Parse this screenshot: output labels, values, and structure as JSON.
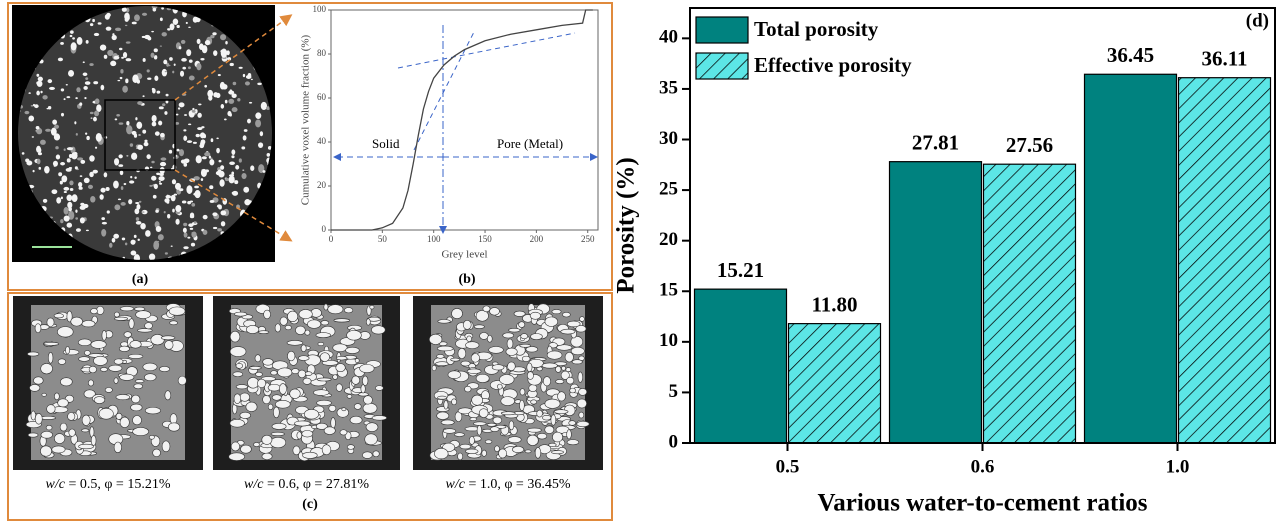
{
  "panel_labels": [
    "(a)",
    "(b)",
    "(c)"
  ],
  "renders": [
    {
      "symbol": "w/c",
      "caption": " = 0.5, φ = 15.21%"
    },
    {
      "symbol": "w/c",
      "caption": " = 0.6, φ = 27.81%"
    },
    {
      "symbol": "w/c",
      "caption": " = 1.0, φ = 36.45%"
    }
  ],
  "chart_data": [
    {
      "type": "line",
      "x": [
        0,
        40,
        50,
        60,
        70,
        75,
        80,
        85,
        90,
        95,
        100,
        110,
        120,
        130,
        150,
        175,
        200,
        225,
        245,
        248,
        255
      ],
      "values": [
        0,
        0,
        1,
        3,
        10,
        18,
        30,
        43,
        55,
        63,
        69,
        75,
        79,
        82,
        86,
        89,
        91,
        93,
        94,
        100,
        100
      ],
      "color": "#444444",
      "xlabel": "Grey level",
      "ylabel": "Cumulative voxel volume fraction (%)",
      "xlim": [
        0,
        260
      ],
      "xticks": [
        0,
        50,
        100,
        150,
        200,
        250
      ],
      "ylim": [
        0,
        100
      ],
      "yticks": [
        0,
        20,
        40,
        60,
        80,
        100
      ],
      "annotations": [
        "Solid",
        "Pore (Metal)"
      ]
    },
    {
      "type": "bar",
      "categories": [
        "0.5",
        "0.6",
        "1.0"
      ],
      "series": [
        {
          "name": "Total porosity",
          "color": "#00827f",
          "values": [
            15.21,
            27.81,
            36.45
          ]
        },
        {
          "name": "Effective porosity",
          "color": "#5ce6e6",
          "hatch": true,
          "values": [
            11.8,
            27.56,
            36.11
          ],
          "value_labels": [
            "11.80",
            "27.56",
            "36.11"
          ]
        }
      ],
      "ylabel": "Porosity (%)",
      "xlabel": "Various water-to-cement ratios",
      "ylim": [
        0,
        43
      ],
      "yticks": [
        0,
        5,
        10,
        15,
        20,
        25,
        30,
        35,
        40
      ],
      "annotation": "(d)",
      "legend": "upper left"
    }
  ]
}
